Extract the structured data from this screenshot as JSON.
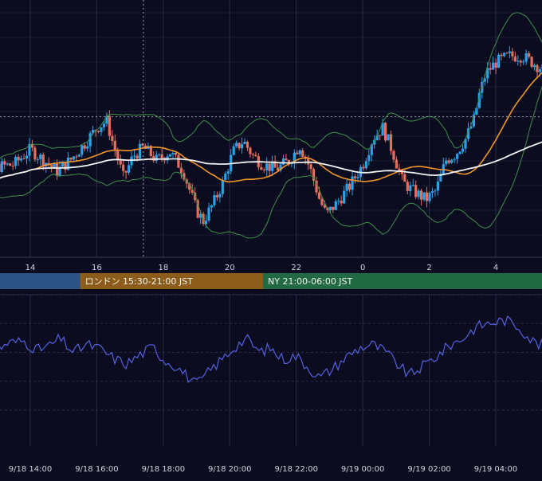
{
  "colors": {
    "background": "#0b0c1f",
    "grid": "#2a2d4a",
    "axis_line": "#3a3d5c",
    "text": "#d0d3dc",
    "candle_up": "#2aa1e8",
    "candle_down": "#e46f5f",
    "bollinger": "#3e8f4a",
    "ma_short": "#f0952a",
    "ma_long": "#f2f2f2",
    "oscillator": "#5560e0",
    "crosshair": "#9aa0b4"
  },
  "sessions": [
    {
      "label": "",
      "color": "#2d5384",
      "start_hour": 12.0,
      "end_hour": 15.5
    },
    {
      "label": "ロンドン 15:30-21:00 JST",
      "color": "#8c5d1a",
      "start_hour": 15.5,
      "end_hour": 21.0
    },
    {
      "label": "NY 21:00-06:00 JST",
      "color": "#226a44",
      "start_hour": 21.0,
      "end_hour": 30.0
    }
  ],
  "chart_data": [
    {
      "type": "candlestick",
      "x_range_hours": [
        12.0,
        27.65
      ],
      "x_ticks": [
        {
          "label": "14",
          "hour": 14
        },
        {
          "label": "16",
          "hour": 16
        },
        {
          "label": "18",
          "hour": 18
        },
        {
          "label": "20",
          "hour": 20
        },
        {
          "label": "22",
          "hour": 22
        },
        {
          "label": "0",
          "hour": 24
        },
        {
          "label": "2",
          "hour": 26
        },
        {
          "label": "4",
          "hour": 28
        }
      ],
      "ylim": [
        0,
        100
      ],
      "grid": true,
      "indicators": [
        "bollinger_bands",
        "moving_average_short",
        "moving_average_long"
      ],
      "crosshair_hour": 17.4,
      "crosshair_y": 58.0,
      "path": [
        [
          12.0,
          25
        ],
        [
          12.5,
          31
        ],
        [
          13.0,
          35
        ],
        [
          13.5,
          36
        ],
        [
          14.0,
          43
        ],
        [
          14.4,
          38
        ],
        [
          14.8,
          33
        ],
        [
          15.2,
          38
        ],
        [
          15.6,
          45
        ],
        [
          16.0,
          53
        ],
        [
          16.3,
          56
        ],
        [
          16.5,
          45
        ],
        [
          16.8,
          30
        ],
        [
          17.1,
          40
        ],
        [
          17.4,
          44
        ],
        [
          17.8,
          38
        ],
        [
          18.2,
          42
        ],
        [
          18.6,
          33
        ],
        [
          19.0,
          15
        ],
        [
          19.2,
          10
        ],
        [
          19.5,
          18
        ],
        [
          19.8,
          28
        ],
        [
          20.1,
          42
        ],
        [
          20.4,
          47
        ],
        [
          20.7,
          40
        ],
        [
          21.0,
          36
        ],
        [
          21.4,
          34
        ],
        [
          21.8,
          38
        ],
        [
          22.1,
          45
        ],
        [
          22.4,
          35
        ],
        [
          22.7,
          20
        ],
        [
          22.9,
          13
        ],
        [
          23.2,
          18
        ],
        [
          23.6,
          26
        ],
        [
          24.0,
          36
        ],
        [
          24.3,
          48
        ],
        [
          24.6,
          53
        ],
        [
          24.9,
          42
        ],
        [
          25.2,
          28
        ],
        [
          25.5,
          24
        ],
        [
          25.9,
          20
        ],
        [
          26.2,
          24
        ],
        [
          26.5,
          38
        ],
        [
          26.8,
          41
        ],
        [
          27.1,
          48
        ],
        [
          27.35,
          57
        ],
        [
          27.5,
          68
        ],
        [
          27.7,
          78
        ],
        [
          28.0,
          83
        ],
        [
          28.4,
          86
        ],
        [
          28.8,
          86
        ],
        [
          29.2,
          82
        ],
        [
          29.5,
          79
        ]
      ]
    },
    {
      "type": "line",
      "x_range_hours": [
        12.0,
        27.65
      ],
      "ylim": [
        0,
        100
      ],
      "grid": true,
      "path": [
        [
          12.0,
          52
        ],
        [
          12.4,
          55
        ],
        [
          12.9,
          50
        ],
        [
          13.3,
          58
        ],
        [
          13.8,
          60
        ],
        [
          14.2,
          52
        ],
        [
          14.6,
          56
        ],
        [
          14.9,
          62
        ],
        [
          15.3,
          50
        ],
        [
          15.7,
          57
        ],
        [
          16.1,
          53
        ],
        [
          16.5,
          45
        ],
        [
          16.9,
          40
        ],
        [
          17.3,
          48
        ],
        [
          17.7,
          55
        ],
        [
          18.0,
          44
        ],
        [
          18.4,
          38
        ],
        [
          18.7,
          30
        ],
        [
          19.0,
          22
        ],
        [
          19.4,
          34
        ],
        [
          19.8,
          45
        ],
        [
          20.2,
          56
        ],
        [
          20.5,
          62
        ],
        [
          20.9,
          50
        ],
        [
          21.2,
          54
        ],
        [
          21.6,
          44
        ],
        [
          22.0,
          47
        ],
        [
          22.4,
          36
        ],
        [
          22.7,
          28
        ],
        [
          23.1,
          36
        ],
        [
          23.5,
          46
        ],
        [
          23.9,
          54
        ],
        [
          24.3,
          57
        ],
        [
          24.7,
          50
        ],
        [
          25.1,
          38
        ],
        [
          25.4,
          30
        ],
        [
          25.8,
          38
        ],
        [
          26.2,
          46
        ],
        [
          26.6,
          56
        ],
        [
          27.0,
          62
        ],
        [
          27.4,
          72
        ],
        [
          27.9,
          76
        ],
        [
          28.3,
          78
        ],
        [
          28.7,
          72
        ],
        [
          29.1,
          60
        ],
        [
          29.5,
          54
        ]
      ]
    }
  ],
  "bottom_axis": {
    "labels": [
      "9/18 14:00",
      "9/18 16:00",
      "9/18 18:00",
      "9/18 20:00",
      "9/18 22:00",
      "9/19 00:00",
      "9/19 02:00",
      "9/19 04:00"
    ],
    "hours": [
      14,
      16,
      18,
      20,
      22,
      24,
      26,
      28
    ]
  }
}
